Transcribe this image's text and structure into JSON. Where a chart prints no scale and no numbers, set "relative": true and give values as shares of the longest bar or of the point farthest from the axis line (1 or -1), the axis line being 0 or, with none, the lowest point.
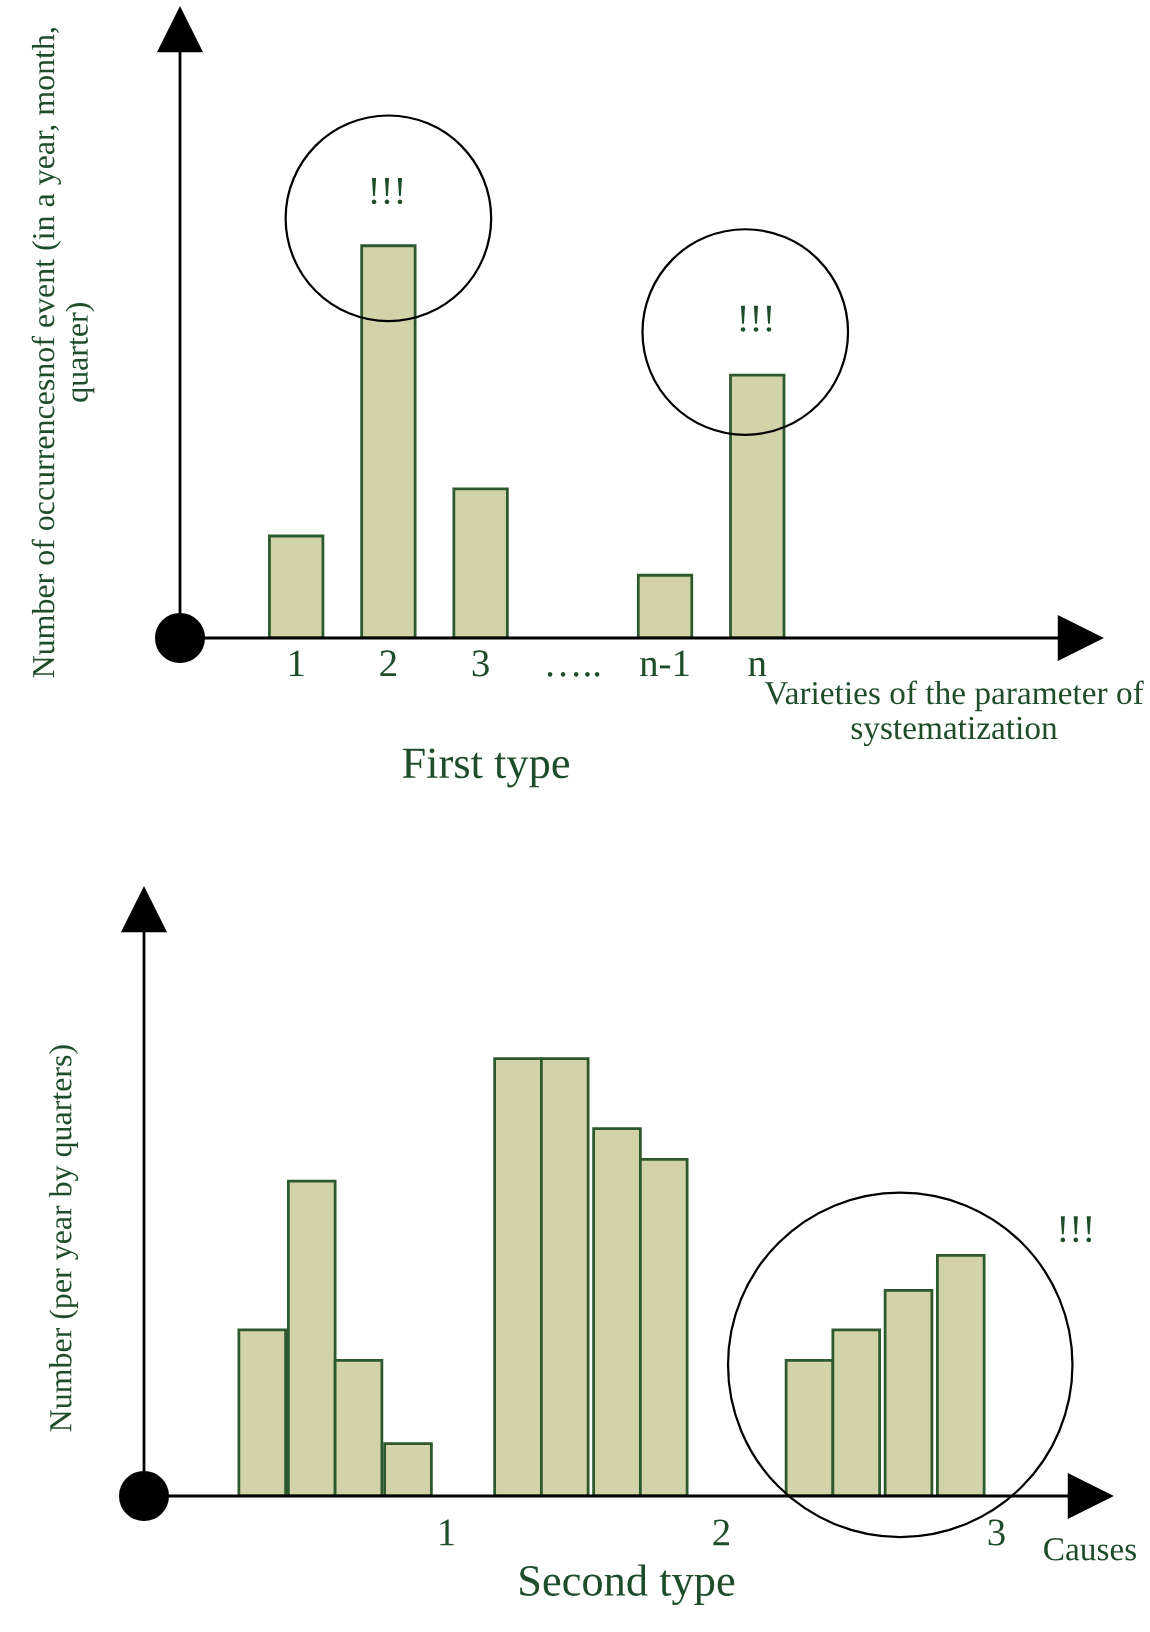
{
  "chart_data": [
    {
      "type": "bar",
      "relative": true,
      "title": "First type",
      "xlabel": "Varieties of the parameter of systematization",
      "ylabel": "Number of occurrencesnof event (in a year, month, quarter)",
      "categories": [
        "1",
        "2",
        "3",
        "…..",
        "n-1",
        "n"
      ],
      "values": [
        0.26,
        1,
        0.38,
        null,
        0.16,
        0.67
      ],
      "color": "#d3d3a9",
      "annotations": [
        "!!!",
        "!!!"
      ]
    },
    {
      "type": "bar",
      "relative": true,
      "title": "Second type",
      "xlabel": "Causes",
      "ylabel": "Number (per year by quarters)",
      "x": [
        0.33,
        0.51,
        0.68,
        0.86,
        1.26,
        1.43,
        1.62,
        1.79,
        2.32,
        2.49,
        2.68,
        2.87
      ],
      "values": [
        0.38,
        0.72,
        0.31,
        0.12,
        1,
        1,
        0.84,
        0.77,
        0.31,
        0.38,
        0.47,
        0.55
      ],
      "color": "#d3d3a9",
      "xlim": [
        -0.1,
        3.34
      ],
      "xticks": [
        1,
        2,
        3
      ],
      "annotations": [
        "!!!"
      ]
    }
  ]
}
